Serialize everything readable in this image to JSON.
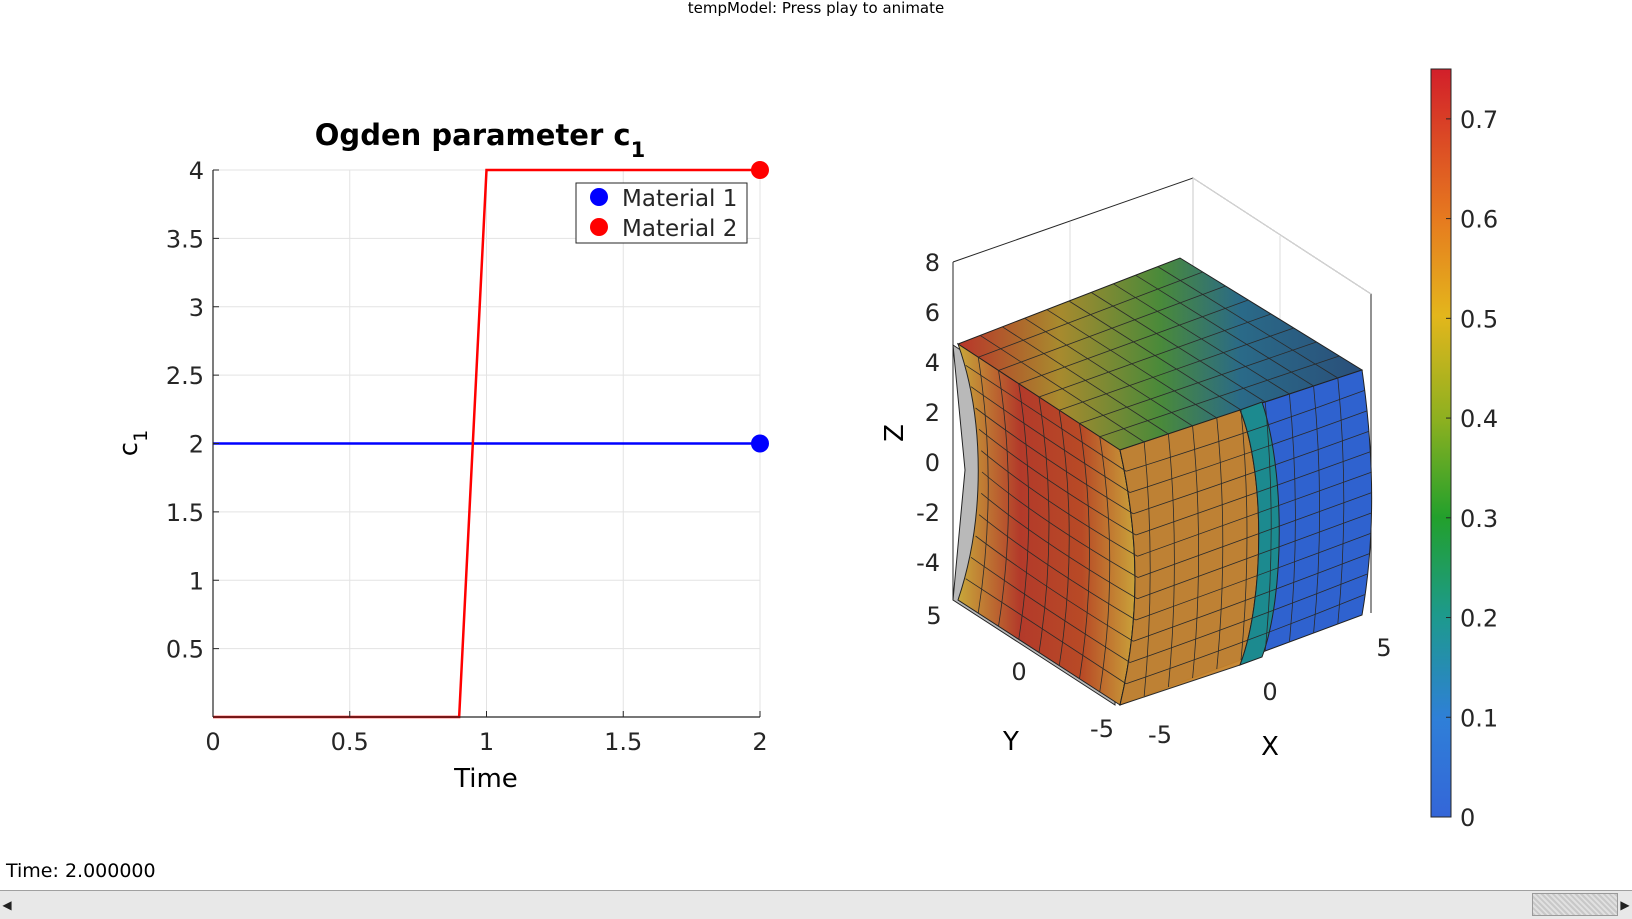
{
  "window": {
    "title": "tempModel: Press play to animate"
  },
  "status": {
    "time_label": "Time: 2.000000"
  },
  "chart_data": [
    {
      "type": "line",
      "title": "Ogden parameter c",
      "title_subscript": "1",
      "xlabel": "Time",
      "ylabel": "c",
      "ylabel_subscript": "1",
      "xlim": [
        0,
        2
      ],
      "ylim": [
        0,
        4
      ],
      "xticks": [
        0,
        0.5,
        1,
        1.5,
        2
      ],
      "xtick_labels": [
        "0",
        "0.5",
        "1",
        "1.5",
        "2"
      ],
      "yticks": [
        0.5,
        1,
        1.5,
        2,
        2.5,
        3,
        3.5,
        4
      ],
      "ytick_labels": [
        "0.5",
        "1",
        "1.5",
        "2",
        "2.5",
        "3",
        "3.5",
        "4"
      ],
      "grid": true,
      "legend_position": "top-right",
      "series": [
        {
          "name": "Material 1",
          "color": "#0000ff",
          "x": [
            0,
            2
          ],
          "y": [
            2,
            2
          ],
          "marker": {
            "x": 2,
            "y": 2
          }
        },
        {
          "name": "Material 2",
          "color": "#ff0000",
          "x": [
            0,
            0.9,
            1.0,
            2
          ],
          "y": [
            0,
            0,
            4,
            4
          ],
          "marker": {
            "x": 2,
            "y": 4
          }
        }
      ]
    },
    {
      "type": "heatmap",
      "description_kind": "3d-mesh",
      "xlabel": "X",
      "ylabel": "Y",
      "zlabel": "Z",
      "xtick_labels": [
        "-5",
        "0",
        "5"
      ],
      "ytick_labels": [
        "5",
        "0",
        "-5"
      ],
      "ztick_labels": [
        "8",
        "6",
        "4",
        "2",
        "0",
        "-2",
        "-4"
      ],
      "colorbar": {
        "ticks": [
          0,
          0.1,
          0.2,
          0.3,
          0.4,
          0.5,
          0.6,
          0.7
        ],
        "tick_labels": [
          "0",
          "0.1",
          "0.2",
          "0.3",
          "0.4",
          "0.5",
          "0.6",
          "0.7"
        ],
        "range": [
          0,
          0.75
        ],
        "colormap": "gjet"
      }
    }
  ]
}
